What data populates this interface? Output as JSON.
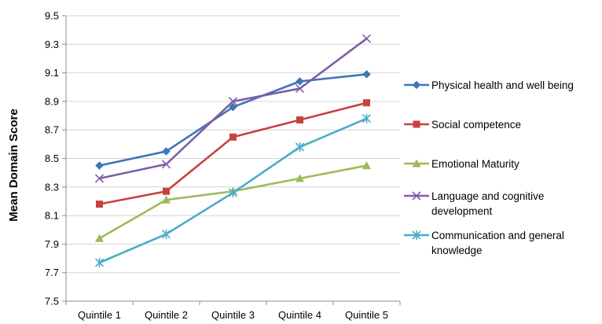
{
  "chart_data": {
    "type": "line",
    "title": "",
    "xlabel": "",
    "ylabel": "Mean Domain Score",
    "categories": [
      "Quintile 1",
      "Quintile 2",
      "Quintile 3",
      "Quintile 4",
      "Quintile 5"
    ],
    "ylim": [
      7.5,
      9.5
    ],
    "yticks": [
      "7.5",
      "7.7",
      "7.9",
      "8.1",
      "8.3",
      "8.5",
      "8.7",
      "8.9",
      "9.1",
      "9.3",
      "9.5"
    ],
    "grid": true,
    "legend_position": "right",
    "series": [
      {
        "name": "Physical health and well being",
        "legend_lines": [
          "Physical health and well being"
        ],
        "color": "#3F75BB",
        "marker": "diamond",
        "values": [
          8.45,
          8.55,
          8.86,
          9.04,
          9.09
        ]
      },
      {
        "name": "Social competence",
        "legend_lines": [
          "Social competence"
        ],
        "color": "#C8413E",
        "marker": "square",
        "values": [
          8.18,
          8.27,
          8.65,
          8.77,
          8.89
        ]
      },
      {
        "name": "Emotional Maturity",
        "legend_lines": [
          "Emotional Maturity"
        ],
        "color": "#9BBB59",
        "marker": "triangle",
        "values": [
          7.94,
          8.21,
          8.27,
          8.36,
          8.45
        ]
      },
      {
        "name": "Language and cognitive development",
        "legend_lines": [
          "Language and cognitive",
          "development"
        ],
        "color": "#7E5EA6",
        "marker": "x",
        "values": [
          8.36,
          8.46,
          8.9,
          8.99,
          9.34
        ]
      },
      {
        "name": "Communication and general knowledge",
        "legend_lines": [
          "Communication and general",
          "knowledge"
        ],
        "color": "#4BACC6",
        "marker": "asterisk",
        "values": [
          7.77,
          7.97,
          8.26,
          8.58,
          8.78
        ]
      }
    ]
  }
}
